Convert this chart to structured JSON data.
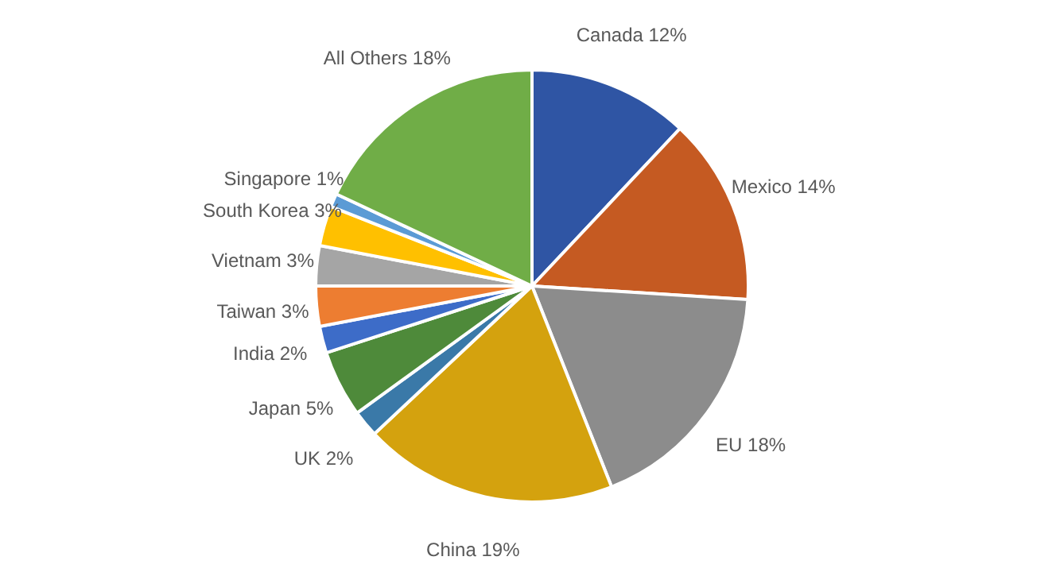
{
  "chart_data": {
    "type": "pie",
    "categories": [
      "Canada",
      "Mexico",
      "EU",
      "China",
      "UK",
      "Japan",
      "India",
      "Taiwan",
      "Vietnam",
      "South Korea",
      "Singapore",
      "All Others"
    ],
    "values": [
      12,
      14,
      18,
      19,
      2,
      5,
      2,
      3,
      3,
      3,
      1,
      18
    ],
    "value_labels": [
      "12%",
      "14%",
      "18%",
      "19%",
      "2%",
      "5%",
      "2%",
      "3%",
      "3%",
      "3%",
      "1%",
      "18%"
    ],
    "colors": [
      "#2f55a4",
      "#c55a22",
      "#8c8c8c",
      "#d4a20e",
      "#3a79a8",
      "#4e8a3a",
      "#3d6cc8",
      "#ed7d31",
      "#a5a5a5",
      "#ffc000",
      "#5b9bd5",
      "#70ad47"
    ]
  }
}
